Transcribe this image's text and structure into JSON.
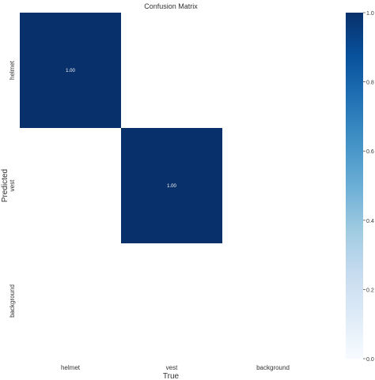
{
  "chart_data": {
    "type": "heatmap",
    "title": "Confusion Matrix",
    "xlabel": "True",
    "ylabel": "Predicted",
    "x_categories": [
      "helmet",
      "vest",
      "background"
    ],
    "y_categories": [
      "helmet",
      "vest",
      "background"
    ],
    "values": [
      [
        1.0,
        0,
        0
      ],
      [
        0,
        1.0,
        0
      ],
      [
        0,
        0,
        0
      ]
    ],
    "annotations": [
      [
        "1.00",
        "",
        ""
      ],
      [
        "",
        "1.00",
        ""
      ],
      [
        "",
        "",
        ""
      ]
    ],
    "colorbar": {
      "range": [
        0,
        1
      ],
      "ticks": [
        0.0,
        0.2,
        0.4,
        0.6,
        0.8,
        1.0
      ],
      "tick_labels": [
        "0.0",
        "0.2",
        "0.4",
        "0.6",
        "0.8",
        "1.0"
      ],
      "colormap": "Blues",
      "low_color": "#f7fbff",
      "high_color": "#08306b"
    }
  }
}
